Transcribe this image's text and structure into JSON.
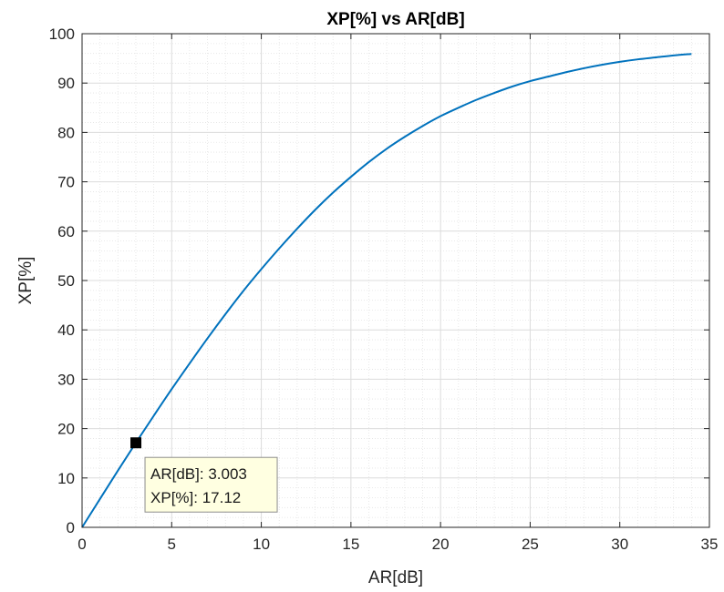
{
  "chart_data": {
    "type": "line",
    "title": "XP[%] vs AR[dB]",
    "xlabel": "AR[dB]",
    "ylabel": "XP[%]",
    "xlim": [
      0,
      35
    ],
    "ylim": [
      0,
      100
    ],
    "xticks": [
      0,
      5,
      10,
      15,
      20,
      25,
      30,
      35
    ],
    "yticks": [
      0,
      10,
      20,
      30,
      40,
      50,
      60,
      70,
      80,
      90,
      100
    ],
    "grid": true,
    "minor_grid": true,
    "colors": {
      "line": "#0072BD",
      "marker": "#000000",
      "tooltip_bg": "#FFFFE1"
    },
    "series": [
      {
        "x": [
          0,
          1,
          2,
          3,
          4,
          5,
          6,
          7,
          8,
          9,
          10,
          11,
          12,
          13,
          14,
          15,
          16,
          17,
          18,
          19,
          20,
          21,
          22,
          23,
          24,
          25,
          26,
          27,
          28,
          29,
          30,
          31,
          32,
          33,
          34
        ],
        "y": [
          0,
          5.75,
          11.5,
          17.12,
          22.6,
          28.0,
          33.2,
          38.3,
          43.2,
          47.9,
          52.3,
          56.5,
          60.5,
          64.3,
          67.8,
          71.0,
          74.0,
          76.7,
          79.1,
          81.3,
          83.3,
          85.0,
          86.6,
          88.0,
          89.3,
          90.4,
          91.3,
          92.2,
          93.0,
          93.7,
          94.3,
          94.8,
          95.2,
          95.6,
          95.9
        ]
      }
    ],
    "datatip": {
      "x": 3.003,
      "y": 17.12,
      "line1": "AR[dB]: 3.003",
      "line2": "XP[%]: 17.12"
    }
  }
}
